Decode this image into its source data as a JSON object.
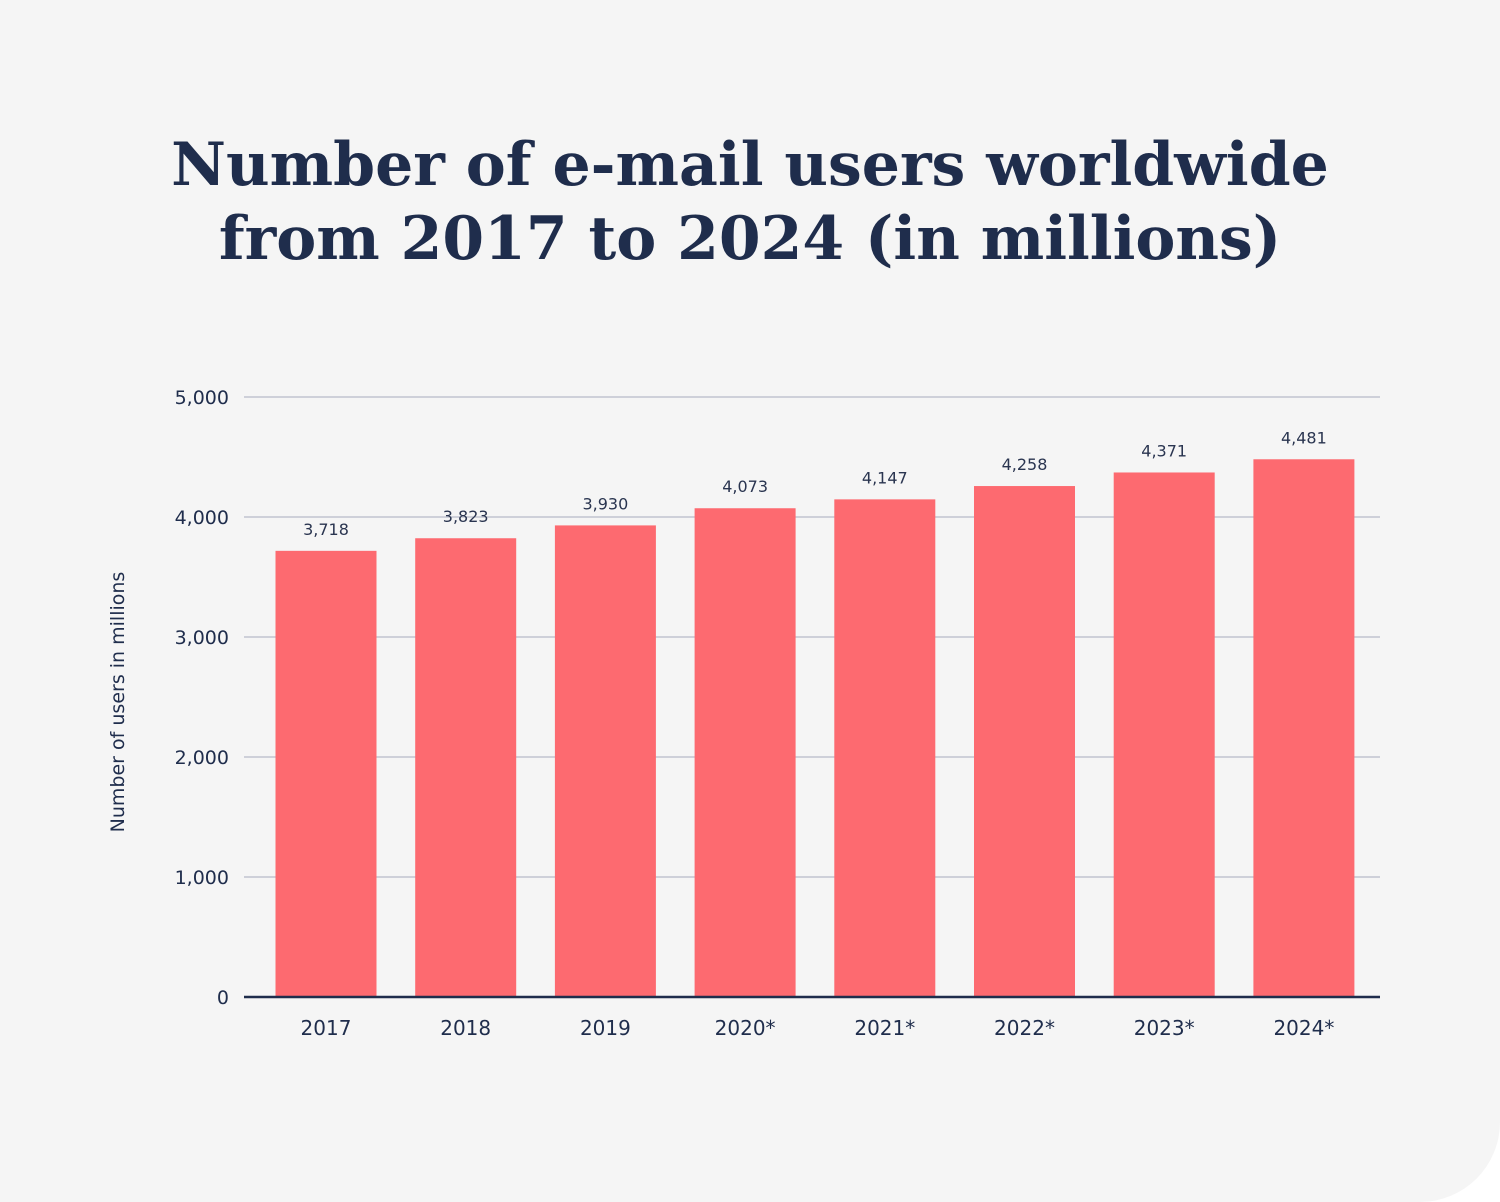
{
  "chart_data": {
    "type": "bar",
    "title_lines": [
      "Number of e-mail users worldwide",
      "from 2017 to 2024 (in millions)"
    ],
    "xlabel": "",
    "ylabel": "Number of users in millions",
    "ylim": [
      0,
      5000
    ],
    "yticks": [
      0,
      1000,
      2000,
      3000,
      4000,
      5000
    ],
    "ytick_labels": [
      "0",
      "1,000",
      "2,000",
      "3,000",
      "4,000",
      "5,000"
    ],
    "categories": [
      "2017",
      "2018",
      "2019",
      "2020*",
      "2021*",
      "2022*",
      "2023*",
      "2024*"
    ],
    "values": [
      3718,
      3823,
      3930,
      4073,
      4147,
      4258,
      4371,
      4481
    ],
    "value_labels": [
      "3,718",
      "3,823",
      "3,930",
      "4,073",
      "4,147",
      "4,258",
      "4,371",
      "4,481"
    ],
    "grid": true,
    "legend": "none",
    "bar_color": "#fd6a70",
    "grid_color": "#a7abbd",
    "axis_color": "#1f2d4c"
  }
}
